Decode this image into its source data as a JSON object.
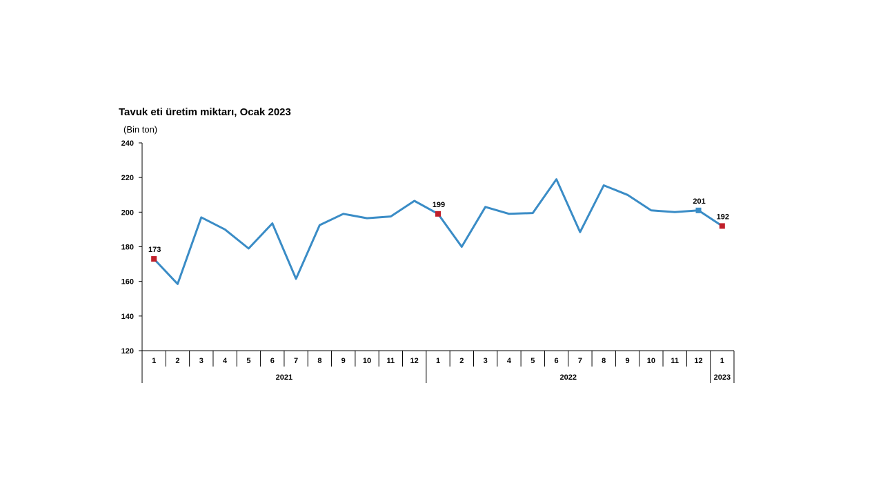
{
  "chart_data": {
    "type": "line",
    "title": "Tavuk eti üretim miktarı, Ocak 2023",
    "ylabel": "(Bin ton)",
    "xlabel": "",
    "ylim": [
      120,
      240
    ],
    "yticks": [
      120,
      140,
      160,
      180,
      200,
      220,
      240
    ],
    "grid": false,
    "categories": [
      "1",
      "2",
      "3",
      "4",
      "5",
      "6",
      "7",
      "8",
      "9",
      "10",
      "11",
      "12",
      "1",
      "2",
      "3",
      "4",
      "5",
      "6",
      "7",
      "8",
      "9",
      "10",
      "11",
      "12",
      "1"
    ],
    "year_groups": [
      {
        "label": "2021",
        "count": 12
      },
      {
        "label": "2022",
        "count": 12
      },
      {
        "label": "2023",
        "count": 1
      }
    ],
    "series": [
      {
        "values": [
          173,
          158.5,
          197,
          190,
          179,
          193.5,
          161.5,
          192.5,
          199,
          196.5,
          197.5,
          206.5,
          199,
          180,
          203,
          199,
          199.5,
          219,
          188.5,
          215.5,
          210,
          201,
          200,
          201,
          192
        ],
        "color": "#3a8cc6"
      }
    ],
    "highlighted_points": [
      {
        "index": 0,
        "label": "173",
        "color": "#c0202a"
      },
      {
        "index": 12,
        "label": "199",
        "color": "#c0202a"
      },
      {
        "index": 23,
        "label": "201",
        "color": "#3a8cc6"
      },
      {
        "index": 24,
        "label": "192",
        "color": "#c0202a"
      }
    ]
  }
}
